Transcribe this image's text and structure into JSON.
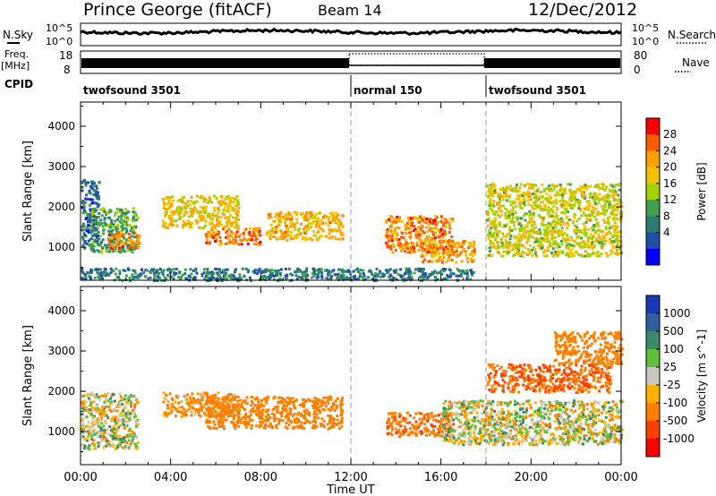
{
  "header": {
    "station": "Prince George (fitACF)",
    "beam": "Beam 14",
    "date": "12/Dec/2012"
  },
  "top_panels": {
    "nsky_label": "N.Sky",
    "nsky_ticks": [
      "10^5",
      "10^0"
    ],
    "nsearch_ticks": [
      "10^5",
      "10^0"
    ],
    "nsearch_label": "N.Search",
    "freq_label": "Freq.",
    "freq_unit": "[MHz]",
    "freq_ticks": [
      "18",
      "8"
    ],
    "nave_ticks": [
      "80",
      "0"
    ],
    "nave_label": "Nave",
    "cpid_label": "CPID",
    "cpid_segments": [
      {
        "label": "twofsound 3501",
        "start_hour": 0,
        "end_hour": 12
      },
      {
        "label": "normal 150",
        "start_hour": 12,
        "end_hour": 18
      },
      {
        "label": "twofsound 3501",
        "start_hour": 18,
        "end_hour": 24
      }
    ]
  },
  "power_colorbar": {
    "label": "Power [dB]",
    "ticks": [
      "28",
      "24",
      "20",
      "16",
      "12",
      "8",
      "4"
    ],
    "colors": [
      "#ff0000",
      "#ff5a00",
      "#ff9f00",
      "#f2c300",
      "#a6d100",
      "#40a050",
      "#2a7d72",
      "#1f50a8",
      "#0000ff"
    ]
  },
  "velocity_colorbar": {
    "label": "Velocity [m s^-1]",
    "ticks": [
      "1000",
      "500",
      "100",
      "25",
      "-25",
      "-100",
      "-500",
      "-1000"
    ],
    "colors": [
      "#1a3ab8",
      "#2e5fa0",
      "#3a8a6a",
      "#5dc03a",
      "#c8c8c0",
      "#ffb000",
      "#ff8000",
      "#ff4000",
      "#ff0000"
    ]
  },
  "x_axis": {
    "label": "Time UT",
    "ticks": [
      "00:00",
      "04:00",
      "08:00",
      "12:00",
      "16:00",
      "20:00",
      "00:00"
    ]
  },
  "chart_data": [
    {
      "type": "heatmap",
      "title": "Power",
      "xlabel": "Time UT",
      "ylabel": "Slant Range [km]",
      "x_range_hours": [
        0,
        24
      ],
      "ylim": [
        180,
        4600
      ],
      "y_ticks": [
        1000,
        2000,
        3000,
        4000
      ],
      "mode_change_hours": [
        12,
        18
      ],
      "bands": [
        {
          "t": [
            0,
            0.8
          ],
          "r": [
            1000,
            2700
          ],
          "value_db": 6
        },
        {
          "t": [
            0.4,
            2.5
          ],
          "r": [
            900,
            2000
          ],
          "value_db": 12
        },
        {
          "t": [
            1.2,
            2.6
          ],
          "r": [
            1000,
            1400
          ],
          "value_db": 26
        },
        {
          "t": [
            3.6,
            7.0
          ],
          "r": [
            1500,
            2300
          ],
          "value_db": 20
        },
        {
          "t": [
            5.5,
            8.0
          ],
          "r": [
            1100,
            1500
          ],
          "value_db": 26
        },
        {
          "t": [
            8.2,
            11.6
          ],
          "r": [
            1200,
            1900
          ],
          "value_db": 22
        },
        {
          "t": [
            13.5,
            16.5
          ],
          "r": [
            900,
            1800
          ],
          "value_db": 26
        },
        {
          "t": [
            15.0,
            17.5
          ],
          "r": [
            650,
            1200
          ],
          "value_db": 24
        },
        {
          "t": [
            18.0,
            24.0
          ],
          "r": [
            800,
            2600
          ],
          "value_db": 18
        },
        {
          "t": [
            0.0,
            17.5
          ],
          "r": [
            200,
            500
          ],
          "value_db": 8
        }
      ]
    },
    {
      "type": "heatmap",
      "title": "Velocity",
      "xlabel": "Time UT",
      "ylabel": "Slant Range [km]",
      "x_range_hours": [
        0,
        24
      ],
      "ylim": [
        180,
        4600
      ],
      "y_ticks": [
        1000,
        2000,
        3000,
        4000
      ],
      "mode_change_hours": [
        12,
        18
      ],
      "bands": [
        {
          "t": [
            0.0,
            2.5
          ],
          "r": [
            600,
            2000
          ],
          "value_ms": 0
        },
        {
          "t": [
            3.6,
            7.0
          ],
          "r": [
            1400,
            2000
          ],
          "value_ms": -150
        },
        {
          "t": [
            5.5,
            11.6
          ],
          "r": [
            1100,
            1900
          ],
          "value_ms": -250
        },
        {
          "t": [
            13.5,
            16.5
          ],
          "r": [
            900,
            1500
          ],
          "value_ms": -400
        },
        {
          "t": [
            16.0,
            24.0
          ],
          "r": [
            700,
            1800
          ],
          "value_ms": 0
        },
        {
          "t": [
            18.0,
            23.5
          ],
          "r": [
            2000,
            2700
          ],
          "value_ms": -500
        },
        {
          "t": [
            21.0,
            24.0
          ],
          "r": [
            2700,
            3500
          ],
          "value_ms": -300
        }
      ]
    }
  ]
}
